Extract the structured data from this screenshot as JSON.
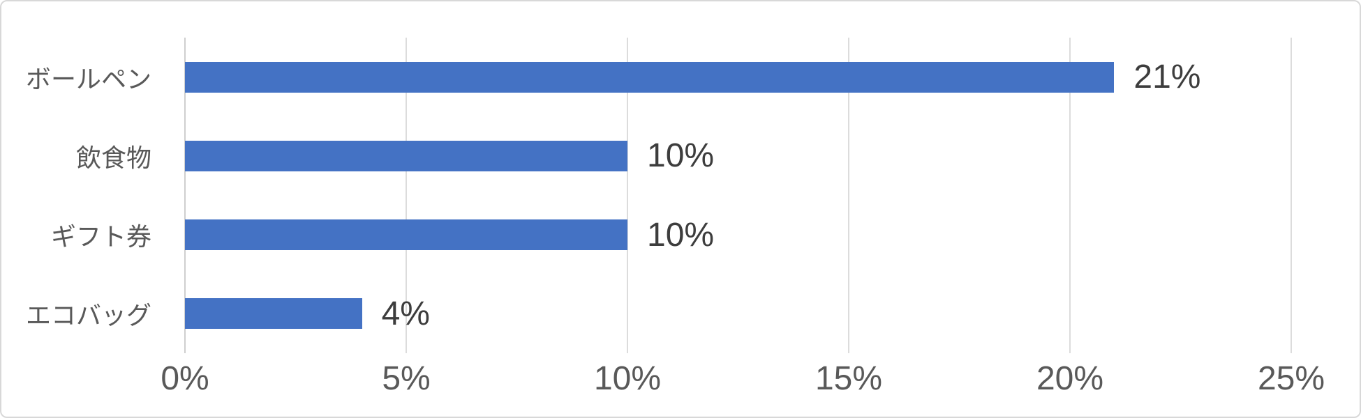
{
  "chart_data": {
    "type": "bar",
    "orientation": "horizontal",
    "title": "",
    "categories": [
      "ボールペン",
      "飲食物",
      "ギフト券",
      "エコバッグ"
    ],
    "values": [
      21,
      10,
      10,
      4
    ],
    "value_labels": [
      "21%",
      "10%",
      "10%",
      "4%"
    ],
    "x_ticks": [
      "0%",
      "5%",
      "10%",
      "15%",
      "20%",
      "25%"
    ],
    "xlim": [
      0,
      25
    ],
    "grid": "vertical-only",
    "legend_position": "none",
    "colors": {
      "bar": "#4472C4",
      "gridline": "#DCDCDC",
      "axis_line": "#CFCFCF",
      "category_label": "#595959",
      "tick_label": "#595959",
      "value_label": "#3D3D3D",
      "background": "#FFFFFF",
      "border": "#D8D8D8"
    }
  }
}
